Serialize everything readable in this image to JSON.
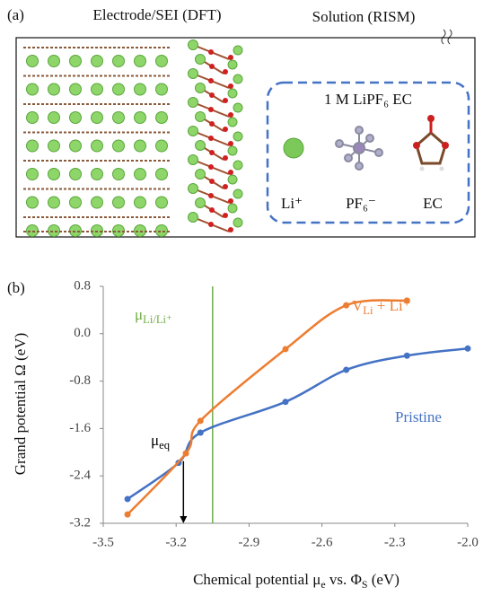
{
  "panel_a": {
    "label": "(a)",
    "left_title": "Electrode/SEI (DFT)",
    "right_title": "Solution (RISM)",
    "box_title": "1 M LiPF₆ EC",
    "species": [
      "Li⁺",
      "PF₆⁻",
      "EC"
    ]
  },
  "chart_data": {
    "type": "line",
    "panel_label": "(b)",
    "x_label_parts": [
      "Chemical potential μ",
      "e",
      " vs. Φ",
      "S",
      " (eV)"
    ],
    "y_label": "Grand potential Ω (eV)",
    "xlim": [
      -3.5,
      -2.0
    ],
    "xticks": [
      -3.5,
      -3.2,
      -2.9,
      -2.6,
      -2.3,
      {
        "value": -2,
        "label": "-2.0"
      }
    ],
    "ylim": [
      -3.2,
      0.8
    ],
    "yticks": [
      0.8,
      {
        "value": 0,
        "label": "0.0"
      },
      -0.8,
      -1.6,
      -2.4,
      -3.2
    ],
    "series": [
      {
        "name": "Pristine",
        "color": "#4472c4",
        "x": [
          -3.4,
          -3.19,
          -3.1,
          -2.75,
          -2.5,
          -2.25,
          -2.0
        ],
        "values": [
          -2.79,
          -2.18,
          -1.67,
          -1.15,
          -0.61,
          -0.37,
          -0.25
        ]
      },
      {
        "name_parts": [
          "V",
          "Li",
          " + Li⁺"
        ],
        "color": "#ed7d31",
        "x": [
          -3.4,
          -3.16,
          -3.1,
          -2.75,
          -2.5,
          -2.25
        ],
        "values": [
          -3.05,
          -2.02,
          -1.47,
          -0.26,
          0.48,
          0.56
        ]
      }
    ],
    "annotations": [
      {
        "text_parts": [
          "μ",
          "Li/Li⁺"
        ],
        "color": "#70ad47",
        "x": -3.05
      },
      {
        "text_parts": [
          "μ",
          "eq"
        ],
        "color": "#000000",
        "x": -3.17,
        "y": -2.15
      }
    ]
  }
}
